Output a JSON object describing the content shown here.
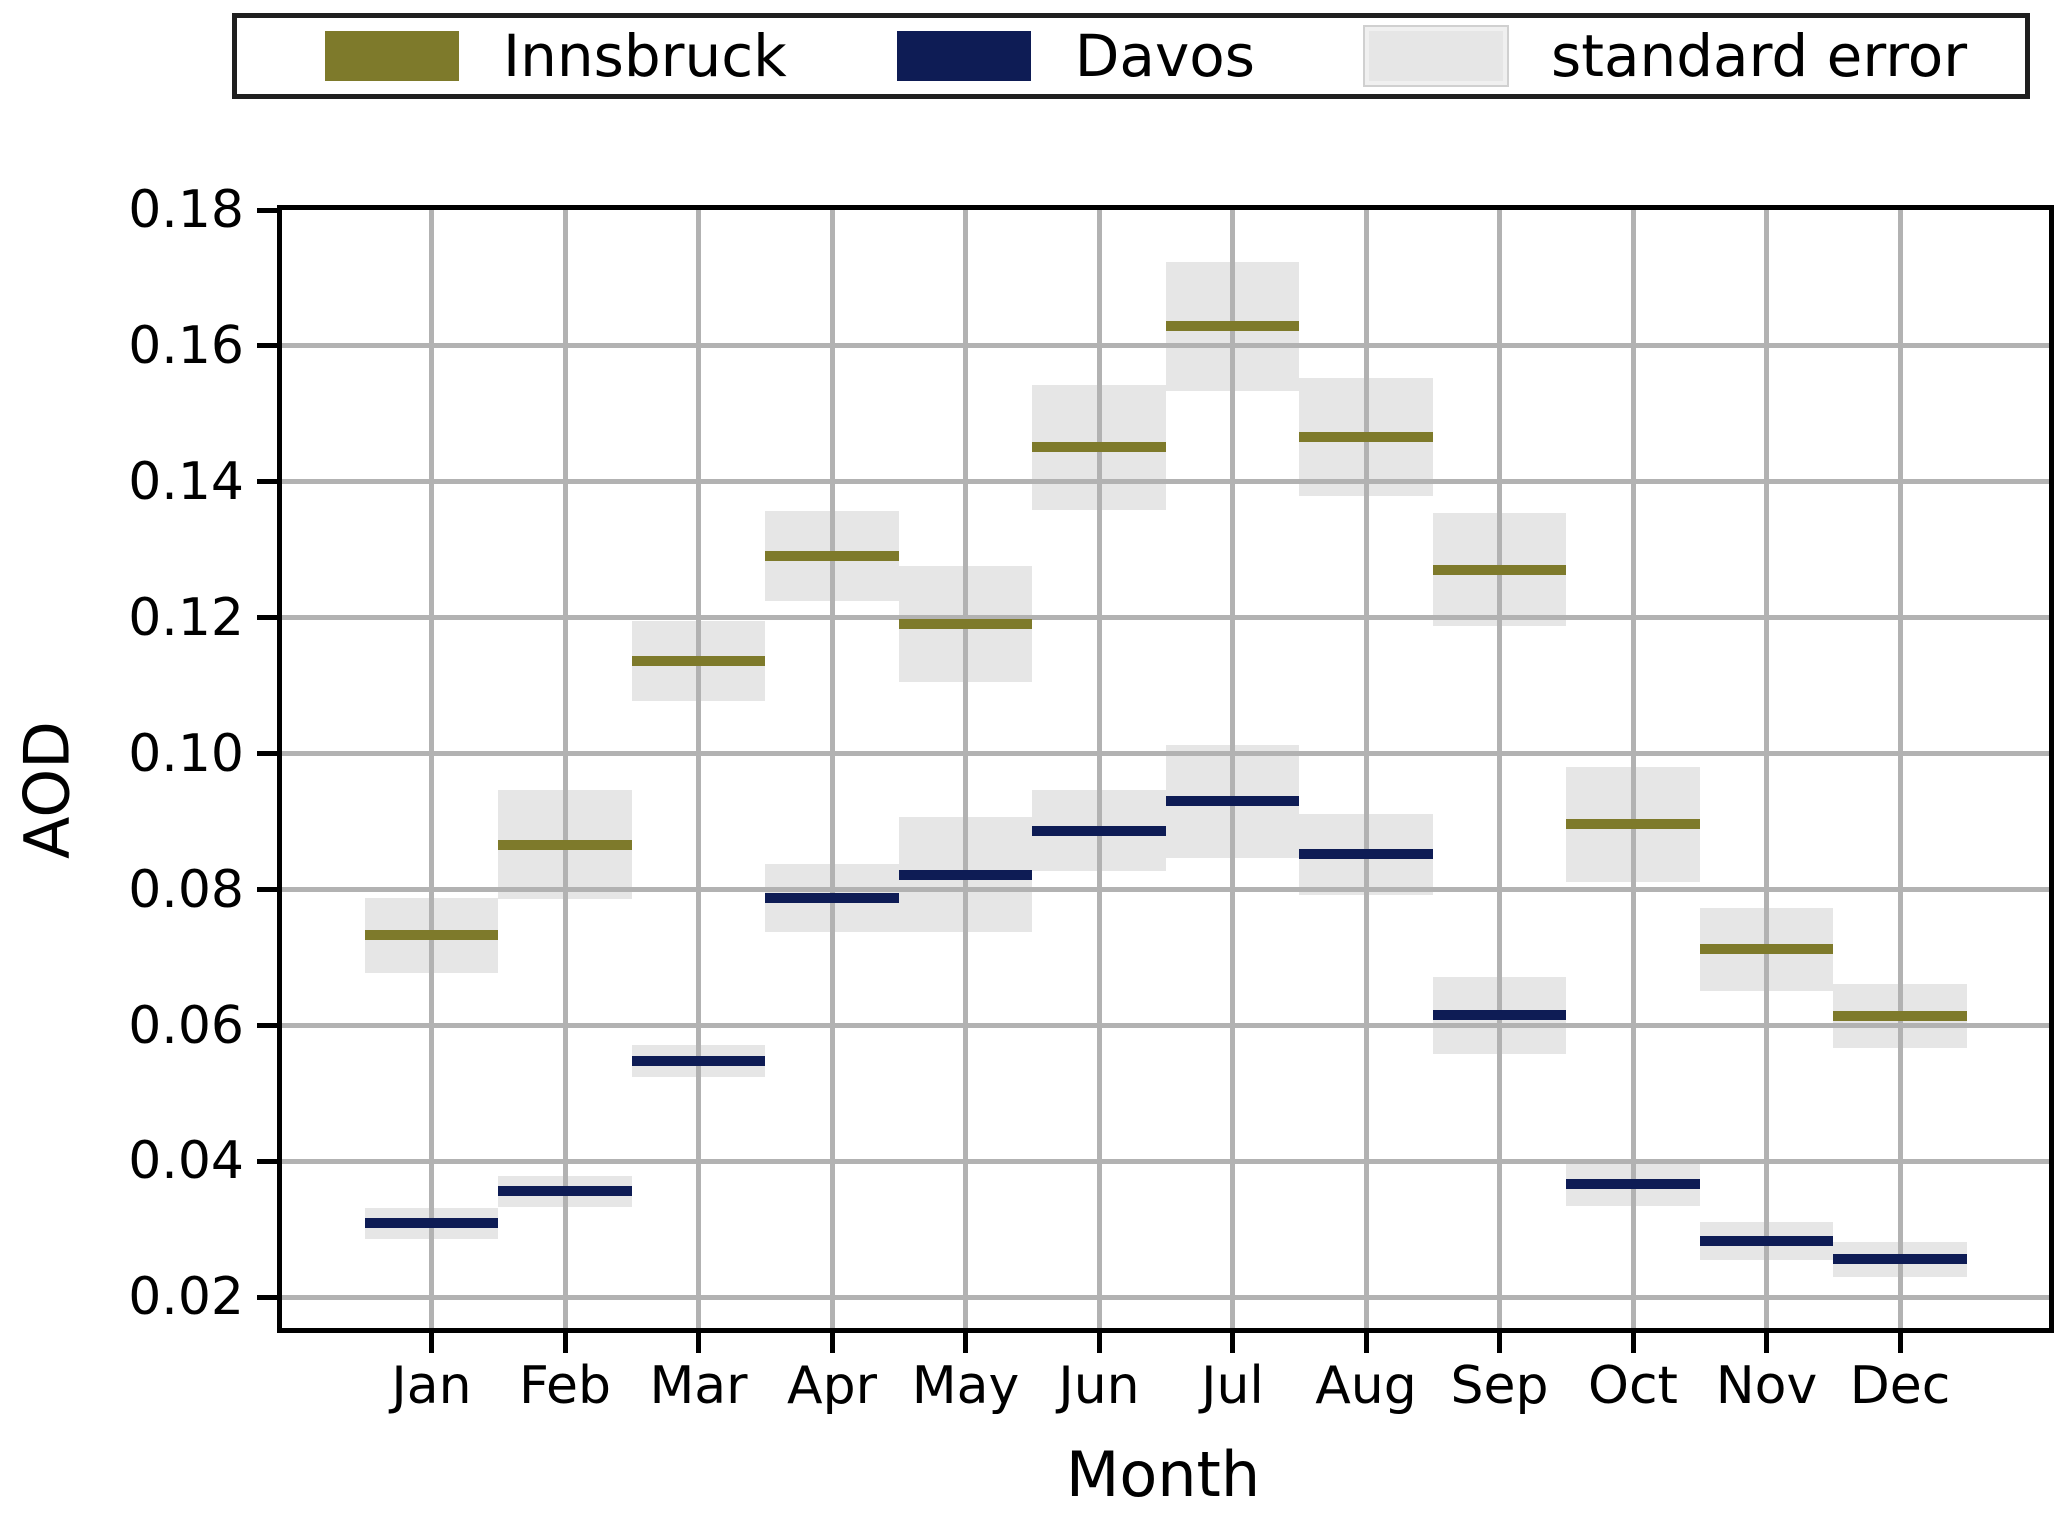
{
  "legend": {
    "items": [
      {
        "label": "Innsbruck",
        "color": "#7e7a2b"
      },
      {
        "label": "Davos",
        "color": "#0e1c55"
      },
      {
        "label": "standard error",
        "color": "#e6e6e6"
      }
    ]
  },
  "axes": {
    "ylabel": "AOD",
    "xlabel": "Month"
  },
  "chart_data": {
    "type": "bar",
    "marker_style": "thick horizontal line segment per month with shaded standard-error box",
    "title": "",
    "xlabel": "Month",
    "ylabel": "AOD",
    "categories": [
      "Jan",
      "Feb",
      "Mar",
      "Apr",
      "May",
      "Jun",
      "Jul",
      "Aug",
      "Sep",
      "Oct",
      "Nov",
      "Dec"
    ],
    "series": [
      {
        "name": "Innsbruck",
        "color": "#7e7a2b",
        "values": [
          0.0733,
          0.0866,
          0.1136,
          0.1291,
          0.1191,
          0.1451,
          0.1629,
          0.1466,
          0.1271,
          0.0896,
          0.0712,
          0.0614
        ],
        "stderr": [
          0.0055,
          0.008,
          0.0059,
          0.0066,
          0.0085,
          0.0092,
          0.0095,
          0.0087,
          0.0083,
          0.0085,
          0.0061,
          0.0047
        ]
      },
      {
        "name": "Davos",
        "color": "#0e1c55",
        "values": [
          0.0309,
          0.0356,
          0.0548,
          0.0788,
          0.0822,
          0.0887,
          0.093,
          0.0852,
          0.0615,
          0.0367,
          0.0283,
          0.0256
        ],
        "stderr": [
          0.0023,
          0.0023,
          0.0023,
          0.005,
          0.0085,
          0.0059,
          0.0083,
          0.006,
          0.0057,
          0.0033,
          0.0028,
          0.0026
        ]
      }
    ],
    "stderr_color": "#e6e6e6",
    "ylim": [
      0.0155,
      0.18
    ],
    "yticks": [
      0.02,
      0.04,
      0.06,
      0.08,
      0.1,
      0.12,
      0.14,
      0.16,
      0.18
    ],
    "ytick_format": "0.00",
    "grid": true,
    "grid_color": "#b2b2b2",
    "legend_entries": [
      "Innsbruck",
      "Davos",
      "standard error"
    ],
    "legend_position": "top"
  }
}
